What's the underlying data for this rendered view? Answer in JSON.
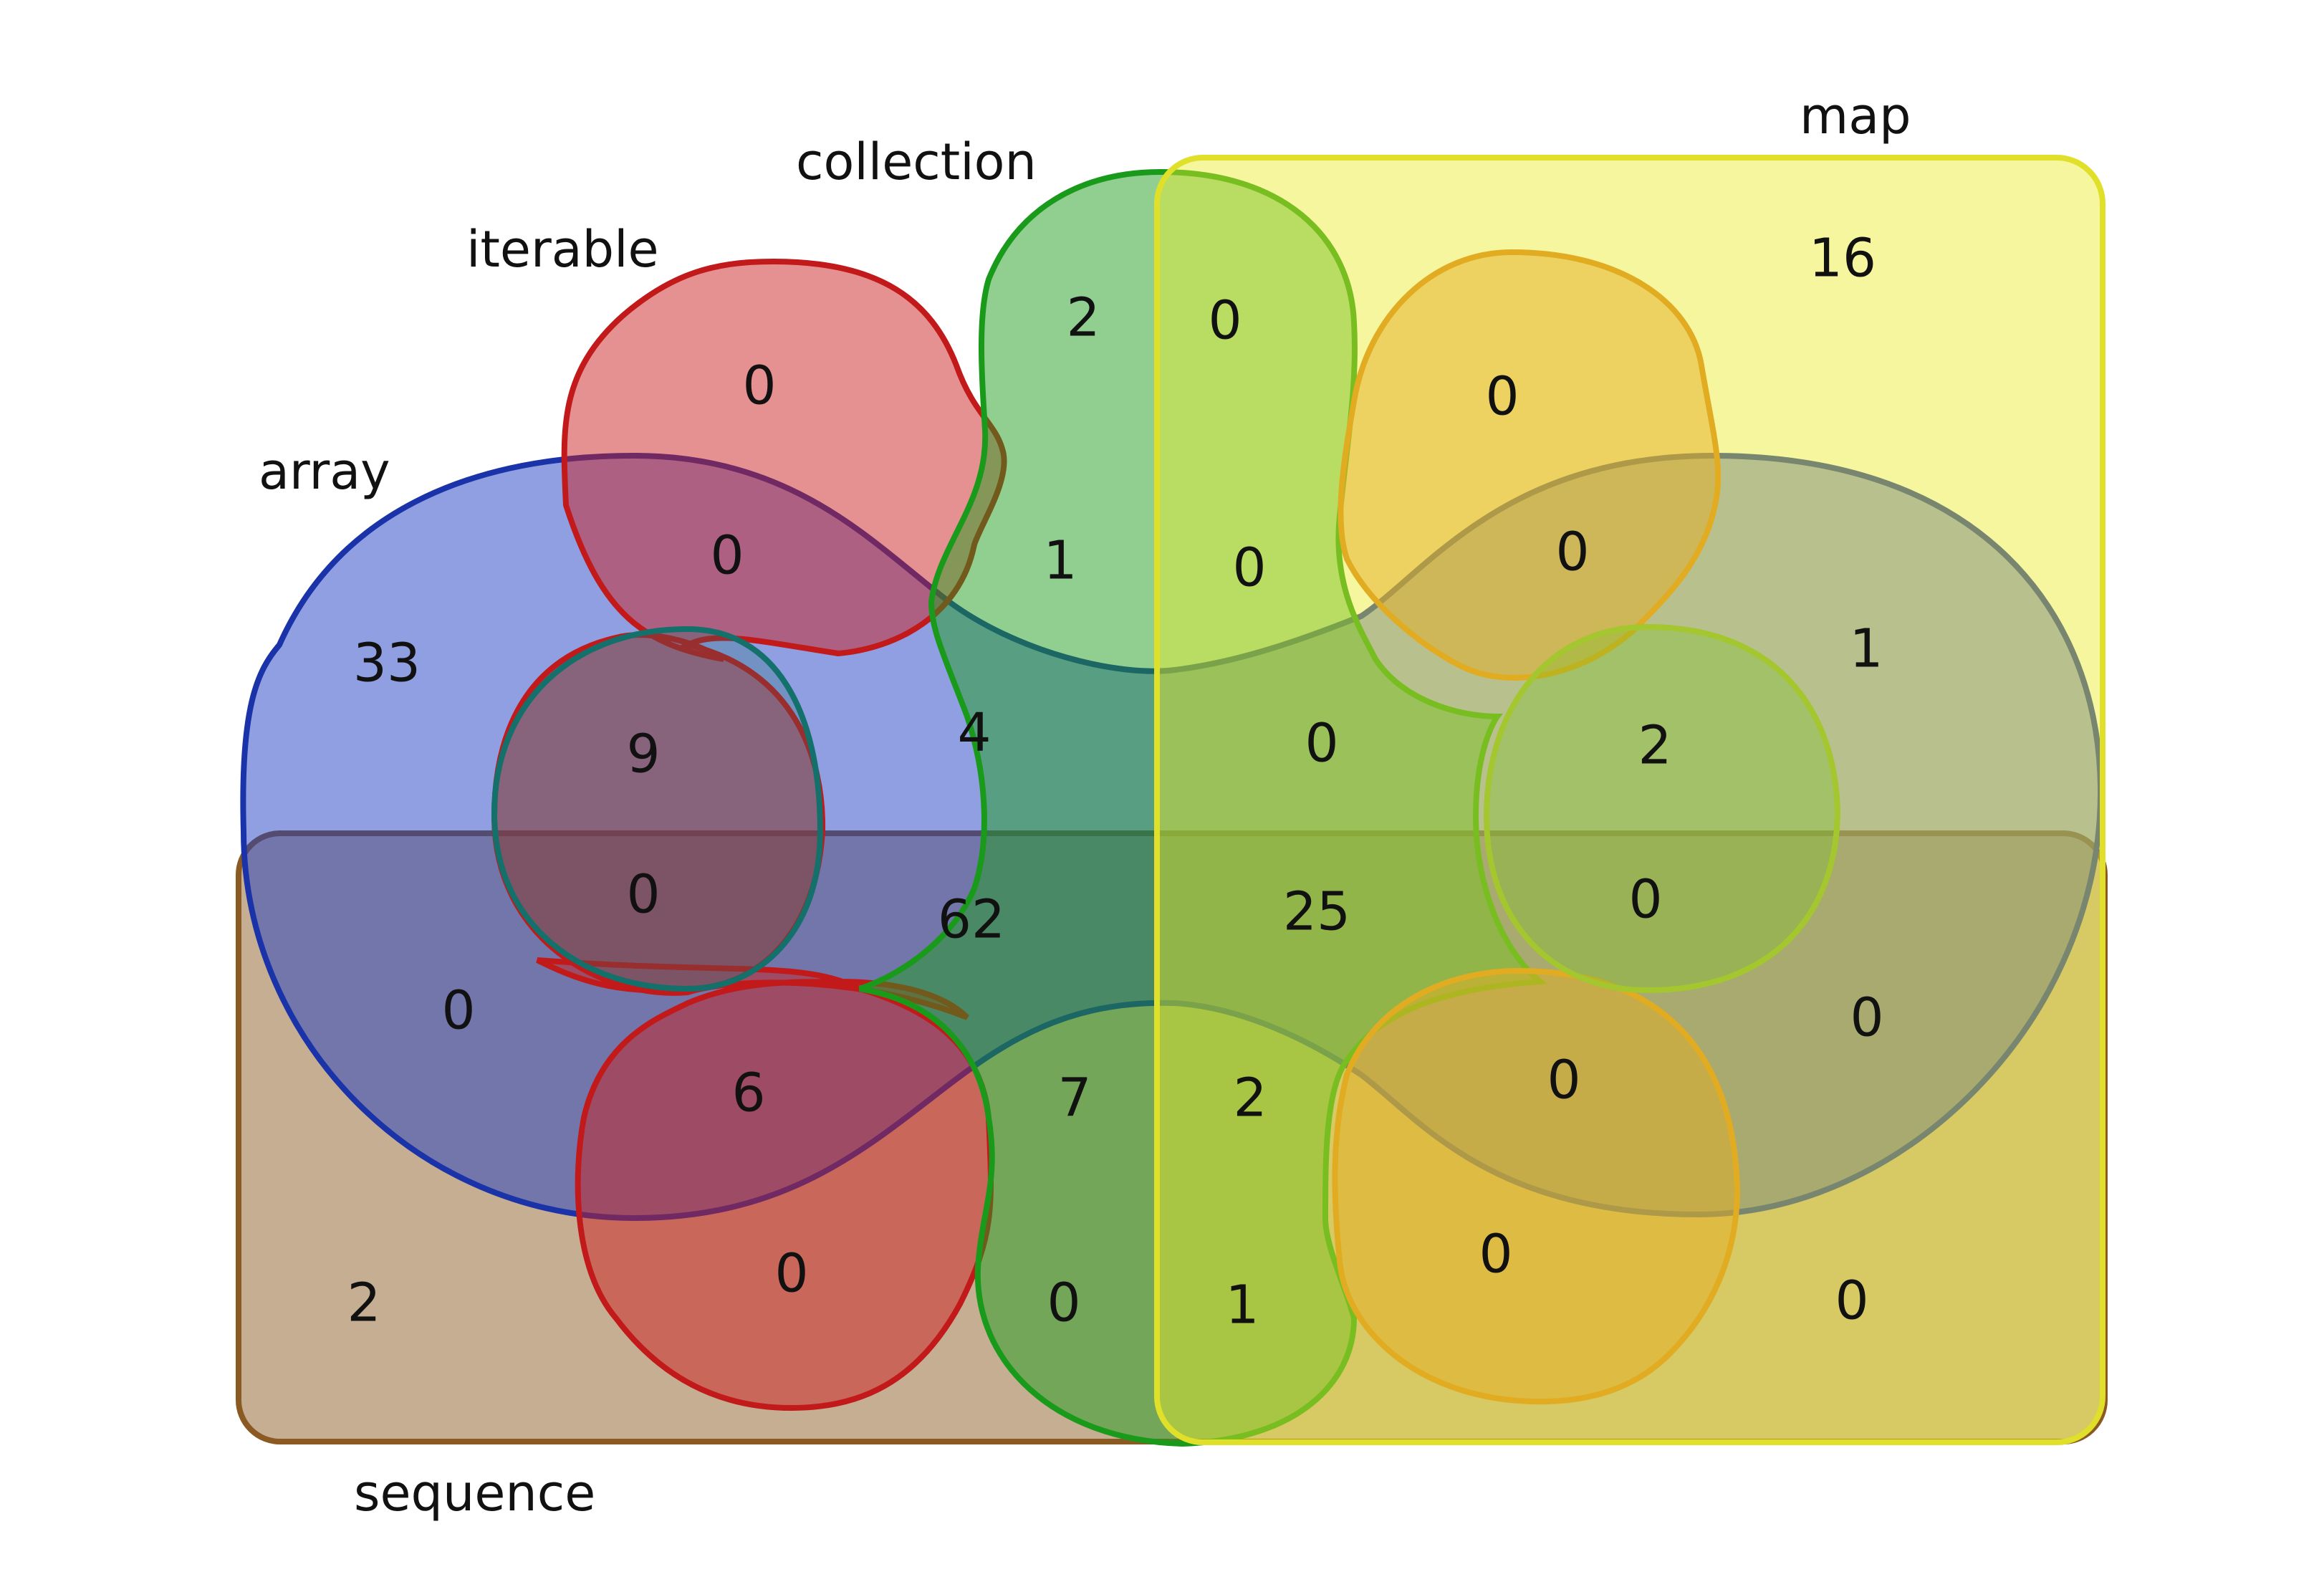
{
  "sets": {
    "array": {
      "label": "array",
      "fill": "#1a3cc2",
      "stroke": "#1a33a8"
    },
    "iterable": {
      "label": "iterable",
      "fill": "#cc1f1f",
      "stroke": "#c21a1a"
    },
    "collection": {
      "label": "collection",
      "fill": "#1e9e1e",
      "stroke": "#1a9a1a"
    },
    "map": {
      "label": "map",
      "fill": "#eaea2a",
      "stroke": "#e0e02a"
    },
    "sequence": {
      "label": "sequence",
      "fill": "#8b5a23",
      "stroke": "#8b5a23"
    }
  },
  "regions": {
    "map_only": "16",
    "collection_only": "2",
    "collection_map": "0",
    "iterable_only": "0",
    "map_lobe_top": "0",
    "array_only": "33",
    "array_iterable": "0",
    "collection_upper_mid": "1",
    "collection_map_upper": "0",
    "map_array_upper": "0",
    "map_array_right": "1",
    "array_inner_left": "9",
    "array_core_upper": "4",
    "map_core_upper": "0",
    "map_inner_right": "2",
    "inner_left_sequence": "0",
    "core_sequence": "62",
    "map_core_sequence": "25",
    "map_inner_right_sequence": "0",
    "array_sequence": "0",
    "map_array_sequence": "0",
    "iterable_lower_array": "6",
    "collection_lower_array": "7",
    "collection_map_lower": "2",
    "map_lobe_lower_array": "0",
    "sequence_only": "2",
    "iterable_lower": "0",
    "collection_lower": "0",
    "collection_map_bottom": "1",
    "map_lobe_bottom": "0",
    "map_sequence": "0"
  }
}
